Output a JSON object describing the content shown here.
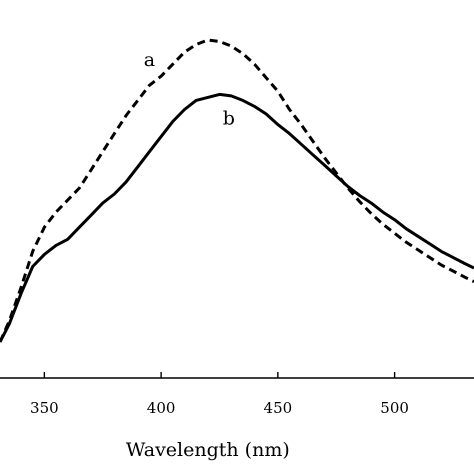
{
  "chart_data": {
    "type": "line",
    "title": "",
    "xlabel": "Wavelength (nm)",
    "ylabel": "",
    "xlim": [
      331,
      534
    ],
    "ylim": [
      0,
      1
    ],
    "x_ticks": [
      350,
      400,
      450,
      500
    ],
    "x_tick_labels": [
      "350",
      "400",
      "450",
      "500"
    ],
    "grid": false,
    "legend": "none",
    "series": [
      {
        "name": "a",
        "color": "#000000",
        "style": "dashed",
        "x": [
          331,
          335,
          340,
          345,
          350,
          355,
          360,
          365,
          370,
          375,
          380,
          385,
          390,
          395,
          400,
          405,
          410,
          415,
          420,
          425,
          430,
          435,
          440,
          445,
          450,
          455,
          460,
          465,
          470,
          475,
          480,
          485,
          490,
          495,
          500,
          505,
          510,
          515,
          520,
          525,
          530,
          534
        ],
        "y": [
          0.0,
          0.07,
          0.18,
          0.3,
          0.38,
          0.43,
          0.47,
          0.51,
          0.57,
          0.63,
          0.69,
          0.75,
          0.8,
          0.85,
          0.88,
          0.92,
          0.96,
          0.985,
          1.0,
          0.995,
          0.98,
          0.955,
          0.92,
          0.875,
          0.83,
          0.77,
          0.72,
          0.665,
          0.61,
          0.56,
          0.51,
          0.465,
          0.425,
          0.39,
          0.36,
          0.33,
          0.305,
          0.28,
          0.255,
          0.235,
          0.215,
          0.2
        ]
      },
      {
        "name": "b",
        "color": "#000000",
        "style": "solid",
        "x": [
          331,
          335,
          340,
          345,
          350,
          355,
          360,
          365,
          370,
          375,
          380,
          385,
          390,
          395,
          400,
          405,
          410,
          415,
          420,
          425,
          430,
          435,
          440,
          445,
          450,
          455,
          460,
          465,
          470,
          475,
          480,
          485,
          490,
          495,
          500,
          505,
          510,
          515,
          520,
          525,
          530,
          534
        ],
        "y": [
          0.0,
          0.06,
          0.16,
          0.25,
          0.29,
          0.32,
          0.34,
          0.38,
          0.42,
          0.46,
          0.49,
          0.53,
          0.58,
          0.63,
          0.68,
          0.73,
          0.77,
          0.8,
          0.81,
          0.82,
          0.815,
          0.8,
          0.78,
          0.755,
          0.72,
          0.69,
          0.655,
          0.62,
          0.585,
          0.55,
          0.515,
          0.485,
          0.46,
          0.43,
          0.405,
          0.375,
          0.35,
          0.325,
          0.3,
          0.28,
          0.26,
          0.245
        ]
      }
    ]
  }
}
